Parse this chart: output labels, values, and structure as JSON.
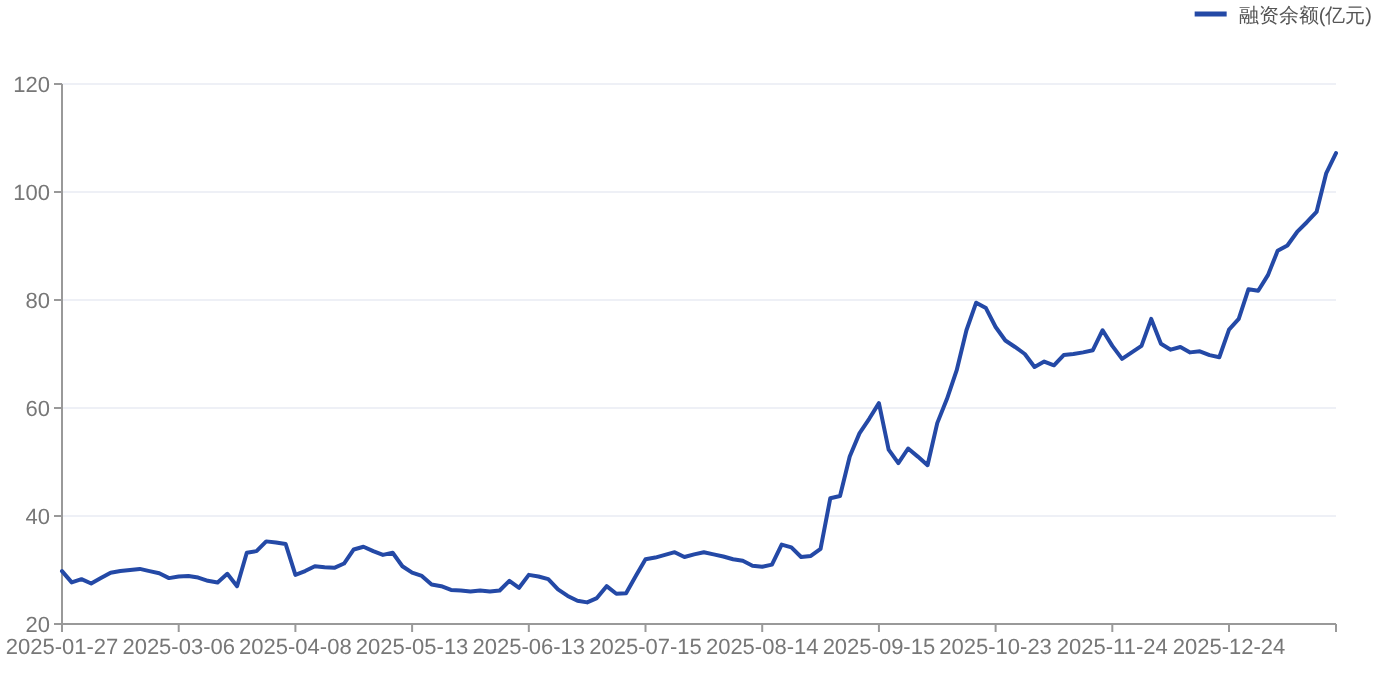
{
  "chart_data": {
    "type": "line",
    "categories": [
      "2025-01-27",
      null,
      null,
      null,
      null,
      null,
      null,
      null,
      null,
      null,
      null,
      null,
      "2025-03-06",
      null,
      null,
      null,
      null,
      null,
      null,
      null,
      null,
      null,
      null,
      null,
      "2025-04-08",
      null,
      null,
      null,
      null,
      null,
      null,
      null,
      null,
      null,
      null,
      null,
      "2025-05-13",
      null,
      null,
      null,
      null,
      null,
      null,
      null,
      null,
      null,
      null,
      null,
      "2025-06-13",
      null,
      null,
      null,
      null,
      null,
      null,
      null,
      null,
      null,
      null,
      null,
      "2025-07-15",
      null,
      null,
      null,
      null,
      null,
      null,
      null,
      null,
      null,
      null,
      null,
      "2025-08-14",
      null,
      null,
      null,
      null,
      null,
      null,
      null,
      null,
      null,
      null,
      null,
      "2025-09-15",
      null,
      null,
      null,
      null,
      null,
      null,
      null,
      null,
      null,
      null,
      null,
      "2025-10-23",
      null,
      null,
      null,
      null,
      null,
      null,
      null,
      null,
      null,
      null,
      null,
      "2025-11-24",
      null,
      null,
      null,
      null,
      null,
      null,
      null,
      null,
      null,
      null,
      null,
      "2025-12-24",
      null,
      null,
      null,
      null,
      null,
      null,
      null,
      null,
      null,
      null,
      null
    ],
    "series": [
      {
        "name": "融资余额(亿元)",
        "color": "#2449a6",
        "values": [
          29.8,
          27.7,
          28.3,
          27.5,
          28.5,
          29.5,
          29.8,
          30,
          30.2,
          29.8,
          29.4,
          28.5,
          28.8,
          28.9,
          28.6,
          28,
          27.7,
          29.3,
          27,
          33.2,
          33.5,
          35.3,
          35.1,
          34.8,
          29.1,
          29.8,
          30.7,
          30.5,
          30.4,
          31.2,
          33.8,
          34.3,
          33.5,
          32.8,
          33.2,
          30.7,
          29.5,
          28.9,
          27.3,
          27,
          26.3,
          26.2,
          26,
          26.2,
          26,
          26.2,
          28,
          26.7,
          29.1,
          28.8,
          28.3,
          26.4,
          25.2,
          24.3,
          24,
          24.8,
          27,
          25.6,
          25.7,
          28.9,
          32,
          32.3,
          32.8,
          33.3,
          32.4,
          32.9,
          33.3,
          32.9,
          32.5,
          32,
          31.7,
          30.8,
          30.6,
          31,
          34.7,
          34.2,
          32.4,
          32.6,
          33.9,
          43.3,
          43.7,
          51,
          55.3,
          58,
          60.9,
          52.3,
          49.8,
          52.5,
          51,
          49.4,
          57.2,
          61.7,
          67,
          74.4,
          79.5,
          78.5,
          75,
          72.5,
          71.3,
          70,
          67.6,
          68.6,
          67.9,
          69.8,
          70,
          70.3,
          70.7,
          74.4,
          71.5,
          69.1,
          70.3,
          71.5,
          76.5,
          71.9,
          70.8,
          71.3,
          70.3,
          70.5,
          69.8,
          69.4,
          74.5,
          76.5,
          82,
          81.7,
          84.6,
          89.1,
          90.1,
          92.6,
          94.4,
          96.3,
          103.5,
          107.2
        ]
      }
    ],
    "ylim": [
      20,
      120
    ],
    "yticks": [
      20,
      40,
      60,
      80,
      100,
      120
    ],
    "grid": "y",
    "legend": "top right",
    "marker": "none",
    "line_style": "solid"
  }
}
